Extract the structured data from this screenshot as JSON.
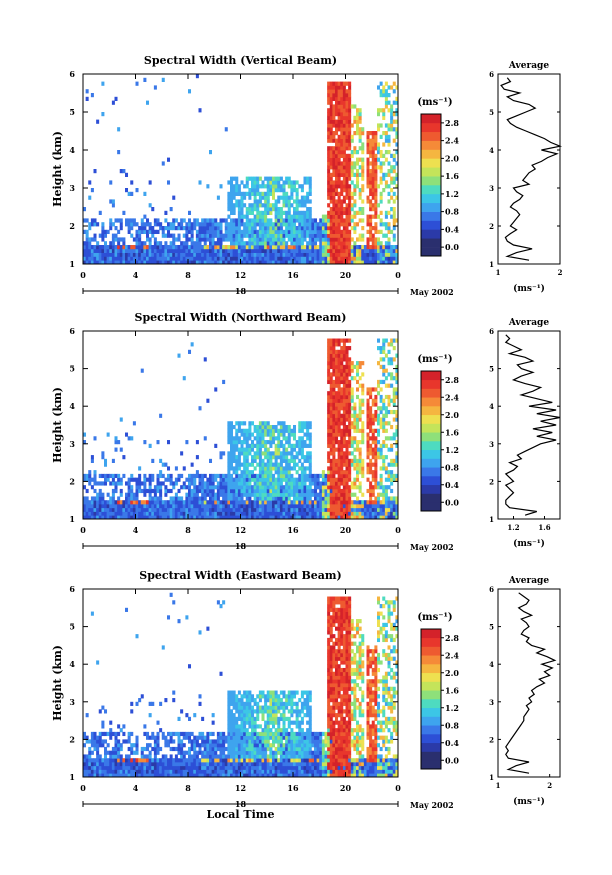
{
  "chart_data": [
    {
      "type": "heatmap",
      "title": "Spectral Width (Vertical Beam)",
      "xlabel": "",
      "ylabel": "Height (km)",
      "x_ticks": [
        "0",
        "4",
        "8",
        "12",
        "16",
        "20",
        "0"
      ],
      "x_range": [
        0,
        24
      ],
      "y_ticks": [
        "1",
        "2",
        "3",
        "4",
        "5",
        "6"
      ],
      "ylim": [
        1,
        6
      ],
      "date_ticks": [
        "18"
      ],
      "date_suffix": "May 2002",
      "colorbar": {
        "unit": "(ms⁻¹)",
        "ticks": [
          "0.0",
          "0.4",
          "0.8",
          "1.2",
          "1.6",
          "2.0",
          "2.4",
          "2.8"
        ],
        "range": [
          0,
          3.0
        ]
      },
      "profile": {
        "title": "Average",
        "xlabel": "(ms⁻¹)",
        "x_ticks": [
          "1",
          "2"
        ],
        "xlim": [
          1,
          2
        ],
        "ylim": [
          1,
          6
        ],
        "y_ticks": [
          "1",
          "2",
          "3",
          "4",
          "5",
          "6"
        ],
        "heights": [
          1.1,
          1.2,
          1.3,
          1.4,
          1.5,
          1.6,
          1.7,
          1.8,
          1.9,
          2.0,
          2.1,
          2.2,
          2.3,
          2.4,
          2.5,
          2.6,
          2.7,
          2.8,
          2.9,
          3.0,
          3.1,
          3.2,
          3.3,
          3.4,
          3.5,
          3.6,
          3.7,
          3.8,
          3.9,
          4.0,
          4.1,
          4.2,
          4.3,
          4.4,
          4.5,
          4.6,
          4.7,
          4.8,
          4.9,
          5.0,
          5.1,
          5.2,
          5.3,
          5.4,
          5.5,
          5.6,
          5.7,
          5.8,
          5.9
        ],
        "values": [
          1.5,
          1.15,
          1.3,
          1.55,
          1.25,
          1.15,
          1.12,
          1.2,
          1.3,
          1.2,
          1.25,
          1.3,
          1.35,
          1.3,
          1.2,
          1.25,
          1.35,
          1.4,
          1.3,
          1.25,
          1.5,
          1.4,
          1.45,
          1.5,
          1.6,
          1.55,
          1.7,
          1.8,
          1.95,
          1.7,
          2.0,
          1.85,
          1.75,
          1.6,
          1.45,
          1.3,
          1.2,
          1.15,
          1.3,
          1.45,
          1.6,
          1.5,
          1.25,
          1.15,
          1.35,
          1.1,
          1.05,
          1.2,
          1.15
        ]
      }
    },
    {
      "type": "heatmap",
      "title": "Spectral Width (Northward Beam)",
      "xlabel": "",
      "ylabel": "Height (km)",
      "x_ticks": [
        "0",
        "4",
        "8",
        "12",
        "16",
        "20",
        "0"
      ],
      "x_range": [
        0,
        24
      ],
      "y_ticks": [
        "1",
        "2",
        "3",
        "4",
        "5",
        "6"
      ],
      "ylim": [
        1,
        6
      ],
      "date_ticks": [
        "18"
      ],
      "date_suffix": "May 2002",
      "colorbar": {
        "unit": "(ms⁻¹)",
        "ticks": [
          "0.0",
          "0.4",
          "0.8",
          "1.2",
          "1.6",
          "2.0",
          "2.4",
          "2.8"
        ],
        "range": [
          0,
          3.0
        ]
      },
      "profile": {
        "title": "Average",
        "xlabel": "(ms⁻¹)",
        "x_ticks": [
          "1.2",
          "1.6"
        ],
        "xlim": [
          1.0,
          1.8
        ],
        "ylim": [
          1,
          6
        ],
        "y_ticks": [
          "1",
          "2",
          "3",
          "4",
          "5",
          "6"
        ],
        "heights": [
          1.1,
          1.2,
          1.3,
          1.4,
          1.5,
          1.6,
          1.7,
          1.8,
          1.9,
          2.0,
          2.1,
          2.2,
          2.3,
          2.4,
          2.5,
          2.6,
          2.7,
          2.8,
          2.9,
          3.0,
          3.1,
          3.2,
          3.3,
          3.4,
          3.5,
          3.6,
          3.7,
          3.8,
          3.9,
          4.0,
          4.1,
          4.2,
          4.3,
          4.4,
          4.5,
          4.6,
          4.7,
          4.8,
          4.9,
          5.0,
          5.1,
          5.2,
          5.3,
          5.4,
          5.5,
          5.6,
          5.7,
          5.8,
          5.9
        ],
        "values": [
          1.35,
          1.5,
          1.15,
          1.1,
          1.1,
          1.15,
          1.2,
          1.15,
          1.1,
          1.2,
          1.15,
          1.1,
          1.2,
          1.25,
          1.15,
          1.3,
          1.25,
          1.35,
          1.45,
          1.55,
          1.75,
          1.5,
          1.7,
          1.45,
          1.75,
          1.55,
          1.8,
          1.5,
          1.75,
          1.4,
          1.7,
          1.5,
          1.3,
          1.45,
          1.55,
          1.35,
          1.2,
          1.3,
          1.45,
          1.3,
          1.25,
          1.45,
          1.35,
          1.15,
          1.3,
          1.2,
          1.1,
          1.15,
          1.1
        ]
      }
    },
    {
      "type": "heatmap",
      "title": "Spectral Width (Eastward Beam)",
      "xlabel": "Local Time",
      "ylabel": "Height (km)",
      "x_ticks": [
        "0",
        "4",
        "8",
        "12",
        "16",
        "20",
        "0"
      ],
      "x_range": [
        0,
        24
      ],
      "y_ticks": [
        "1",
        "2",
        "3",
        "4",
        "5",
        "6"
      ],
      "ylim": [
        1,
        6
      ],
      "date_ticks": [
        "18"
      ],
      "date_suffix": "May 2002",
      "colorbar": {
        "unit": "(ms⁻¹)",
        "ticks": [
          "0.0",
          "0.4",
          "0.8",
          "1.2",
          "1.6",
          "2.0",
          "2.4",
          "2.8"
        ],
        "range": [
          0,
          3.0
        ]
      },
      "profile": {
        "title": "Average",
        "xlabel": "(ms⁻¹)",
        "x_ticks": [
          "1",
          "2"
        ],
        "xlim": [
          1,
          2.2
        ],
        "ylim": [
          1,
          6
        ],
        "y_ticks": [
          "1",
          "2",
          "3",
          "4",
          "5",
          "6"
        ],
        "heights": [
          1.1,
          1.2,
          1.3,
          1.4,
          1.5,
          1.6,
          1.7,
          1.8,
          1.9,
          2.0,
          2.1,
          2.2,
          2.3,
          2.4,
          2.5,
          2.6,
          2.7,
          2.8,
          2.9,
          3.0,
          3.1,
          3.2,
          3.3,
          3.4,
          3.5,
          3.6,
          3.7,
          3.8,
          3.9,
          4.0,
          4.1,
          4.2,
          4.3,
          4.4,
          4.5,
          4.6,
          4.7,
          4.8,
          4.9,
          5.0,
          5.1,
          5.2,
          5.3,
          5.4,
          5.5,
          5.6,
          5.7,
          5.8,
          5.9
        ],
        "values": [
          1.6,
          1.2,
          1.35,
          1.6,
          1.2,
          1.15,
          1.2,
          1.15,
          1.2,
          1.25,
          1.3,
          1.35,
          1.4,
          1.45,
          1.5,
          1.5,
          1.55,
          1.6,
          1.55,
          1.65,
          1.6,
          1.7,
          1.65,
          1.75,
          1.9,
          1.8,
          2.0,
          1.9,
          2.05,
          1.85,
          2.1,
          1.95,
          1.75,
          1.9,
          1.65,
          1.55,
          1.6,
          1.45,
          1.5,
          1.6,
          1.55,
          1.45,
          1.65,
          1.5,
          1.4,
          1.55,
          1.6,
          1.5,
          1.4
        ]
      }
    }
  ],
  "colors": {
    "scale": [
      "#2a2f6e",
      "#2b3aa8",
      "#2d4fd6",
      "#3a78e8",
      "#3ea4ee",
      "#3cc6e6",
      "#4edbc0",
      "#8ee07a",
      "#c4e45a",
      "#eee050",
      "#f5b640",
      "#f58a38",
      "#ee5a30",
      "#e8362c",
      "#d4222a"
    ],
    "axis": "#000000",
    "profile_line": "#000000"
  }
}
